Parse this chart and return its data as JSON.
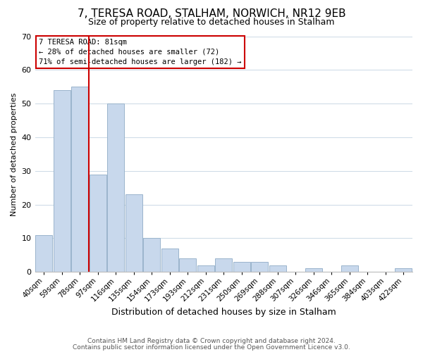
{
  "title": "7, TERESA ROAD, STALHAM, NORWICH, NR12 9EB",
  "subtitle": "Size of property relative to detached houses in Stalham",
  "xlabel": "Distribution of detached houses by size in Stalham",
  "ylabel": "Number of detached properties",
  "bar_labels": [
    "40sqm",
    "59sqm",
    "78sqm",
    "97sqm",
    "116sqm",
    "135sqm",
    "154sqm",
    "173sqm",
    "193sqm",
    "212sqm",
    "231sqm",
    "250sqm",
    "269sqm",
    "288sqm",
    "307sqm",
    "326sqm",
    "346sqm",
    "365sqm",
    "384sqm",
    "403sqm",
    "422sqm"
  ],
  "bar_values": [
    11,
    54,
    55,
    29,
    50,
    23,
    10,
    7,
    4,
    2,
    4,
    3,
    3,
    2,
    0,
    1,
    0,
    2,
    0,
    0,
    1
  ],
  "bar_color": "#c8d8ec",
  "bar_edgecolor": "#9ab4cc",
  "marker_bar_index": 2,
  "marker_label": "7 TERESA ROAD: 81sqm",
  "annotation_line1": "← 28% of detached houses are smaller (72)",
  "annotation_line2": "71% of semi-detached houses are larger (182) →",
  "annotation_box_facecolor": "#ffffff",
  "annotation_box_edgecolor": "#cc0000",
  "marker_line_color": "#cc0000",
  "ylim": [
    0,
    70
  ],
  "yticks": [
    0,
    10,
    20,
    30,
    40,
    50,
    60,
    70
  ],
  "footer1": "Contains HM Land Registry data © Crown copyright and database right 2024.",
  "footer2": "Contains public sector information licensed under the Open Government Licence v3.0.",
  "background_color": "#ffffff",
  "grid_color": "#d0dce8",
  "title_fontsize": 11,
  "subtitle_fontsize": 9,
  "xlabel_fontsize": 9,
  "ylabel_fontsize": 8
}
